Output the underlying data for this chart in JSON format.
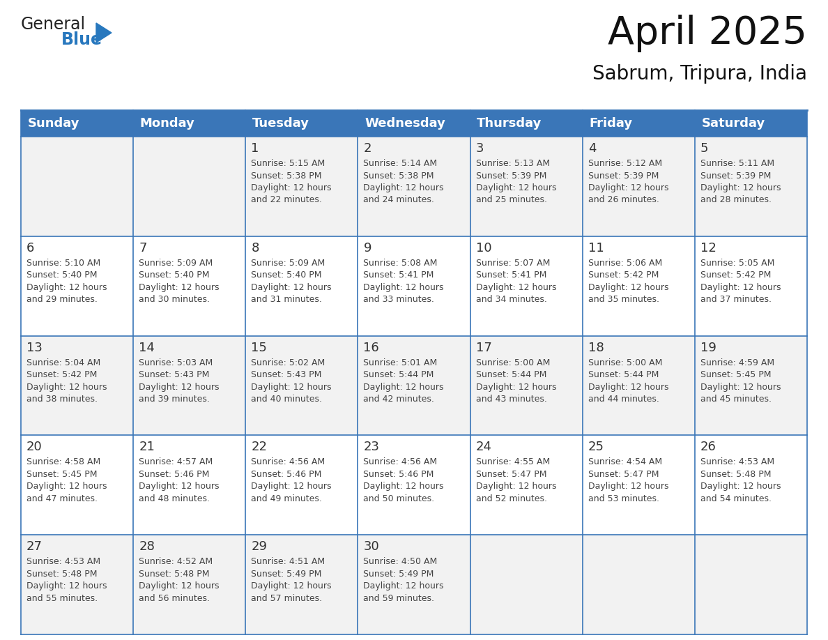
{
  "title": "April 2025",
  "subtitle": "Sabrum, Tripura, India",
  "header_color": "#3a76b8",
  "header_text_color": "#ffffff",
  "cell_bg_white": "#ffffff",
  "cell_bg_gray": "#f2f2f2",
  "border_color": "#3a76b8",
  "text_color": "#444444",
  "day_num_color": "#333333",
  "days_of_week": [
    "Sunday",
    "Monday",
    "Tuesday",
    "Wednesday",
    "Thursday",
    "Friday",
    "Saturday"
  ],
  "calendar_data": [
    [
      {
        "day": "",
        "info": ""
      },
      {
        "day": "",
        "info": ""
      },
      {
        "day": "1",
        "info": "Sunrise: 5:15 AM\nSunset: 5:38 PM\nDaylight: 12 hours\nand 22 minutes."
      },
      {
        "day": "2",
        "info": "Sunrise: 5:14 AM\nSunset: 5:38 PM\nDaylight: 12 hours\nand 24 minutes."
      },
      {
        "day": "3",
        "info": "Sunrise: 5:13 AM\nSunset: 5:39 PM\nDaylight: 12 hours\nand 25 minutes."
      },
      {
        "day": "4",
        "info": "Sunrise: 5:12 AM\nSunset: 5:39 PM\nDaylight: 12 hours\nand 26 minutes."
      },
      {
        "day": "5",
        "info": "Sunrise: 5:11 AM\nSunset: 5:39 PM\nDaylight: 12 hours\nand 28 minutes."
      }
    ],
    [
      {
        "day": "6",
        "info": "Sunrise: 5:10 AM\nSunset: 5:40 PM\nDaylight: 12 hours\nand 29 minutes."
      },
      {
        "day": "7",
        "info": "Sunrise: 5:09 AM\nSunset: 5:40 PM\nDaylight: 12 hours\nand 30 minutes."
      },
      {
        "day": "8",
        "info": "Sunrise: 5:09 AM\nSunset: 5:40 PM\nDaylight: 12 hours\nand 31 minutes."
      },
      {
        "day": "9",
        "info": "Sunrise: 5:08 AM\nSunset: 5:41 PM\nDaylight: 12 hours\nand 33 minutes."
      },
      {
        "day": "10",
        "info": "Sunrise: 5:07 AM\nSunset: 5:41 PM\nDaylight: 12 hours\nand 34 minutes."
      },
      {
        "day": "11",
        "info": "Sunrise: 5:06 AM\nSunset: 5:42 PM\nDaylight: 12 hours\nand 35 minutes."
      },
      {
        "day": "12",
        "info": "Sunrise: 5:05 AM\nSunset: 5:42 PM\nDaylight: 12 hours\nand 37 minutes."
      }
    ],
    [
      {
        "day": "13",
        "info": "Sunrise: 5:04 AM\nSunset: 5:42 PM\nDaylight: 12 hours\nand 38 minutes."
      },
      {
        "day": "14",
        "info": "Sunrise: 5:03 AM\nSunset: 5:43 PM\nDaylight: 12 hours\nand 39 minutes."
      },
      {
        "day": "15",
        "info": "Sunrise: 5:02 AM\nSunset: 5:43 PM\nDaylight: 12 hours\nand 40 minutes."
      },
      {
        "day": "16",
        "info": "Sunrise: 5:01 AM\nSunset: 5:44 PM\nDaylight: 12 hours\nand 42 minutes."
      },
      {
        "day": "17",
        "info": "Sunrise: 5:00 AM\nSunset: 5:44 PM\nDaylight: 12 hours\nand 43 minutes."
      },
      {
        "day": "18",
        "info": "Sunrise: 5:00 AM\nSunset: 5:44 PM\nDaylight: 12 hours\nand 44 minutes."
      },
      {
        "day": "19",
        "info": "Sunrise: 4:59 AM\nSunset: 5:45 PM\nDaylight: 12 hours\nand 45 minutes."
      }
    ],
    [
      {
        "day": "20",
        "info": "Sunrise: 4:58 AM\nSunset: 5:45 PM\nDaylight: 12 hours\nand 47 minutes."
      },
      {
        "day": "21",
        "info": "Sunrise: 4:57 AM\nSunset: 5:46 PM\nDaylight: 12 hours\nand 48 minutes."
      },
      {
        "day": "22",
        "info": "Sunrise: 4:56 AM\nSunset: 5:46 PM\nDaylight: 12 hours\nand 49 minutes."
      },
      {
        "day": "23",
        "info": "Sunrise: 4:56 AM\nSunset: 5:46 PM\nDaylight: 12 hours\nand 50 minutes."
      },
      {
        "day": "24",
        "info": "Sunrise: 4:55 AM\nSunset: 5:47 PM\nDaylight: 12 hours\nand 52 minutes."
      },
      {
        "day": "25",
        "info": "Sunrise: 4:54 AM\nSunset: 5:47 PM\nDaylight: 12 hours\nand 53 minutes."
      },
      {
        "day": "26",
        "info": "Sunrise: 4:53 AM\nSunset: 5:48 PM\nDaylight: 12 hours\nand 54 minutes."
      }
    ],
    [
      {
        "day": "27",
        "info": "Sunrise: 4:53 AM\nSunset: 5:48 PM\nDaylight: 12 hours\nand 55 minutes."
      },
      {
        "day": "28",
        "info": "Sunrise: 4:52 AM\nSunset: 5:48 PM\nDaylight: 12 hours\nand 56 minutes."
      },
      {
        "day": "29",
        "info": "Sunrise: 4:51 AM\nSunset: 5:49 PM\nDaylight: 12 hours\nand 57 minutes."
      },
      {
        "day": "30",
        "info": "Sunrise: 4:50 AM\nSunset: 5:49 PM\nDaylight: 12 hours\nand 59 minutes."
      },
      {
        "day": "",
        "info": ""
      },
      {
        "day": "",
        "info": ""
      },
      {
        "day": "",
        "info": ""
      }
    ]
  ],
  "logo_text_general": "General",
  "logo_text_blue": "Blue",
  "logo_color_general": "#222222",
  "logo_color_blue": "#2878be",
  "logo_triangle_color": "#2878be",
  "title_fontsize": 40,
  "subtitle_fontsize": 20,
  "header_fontsize": 13,
  "day_num_fontsize": 13,
  "info_fontsize": 9
}
